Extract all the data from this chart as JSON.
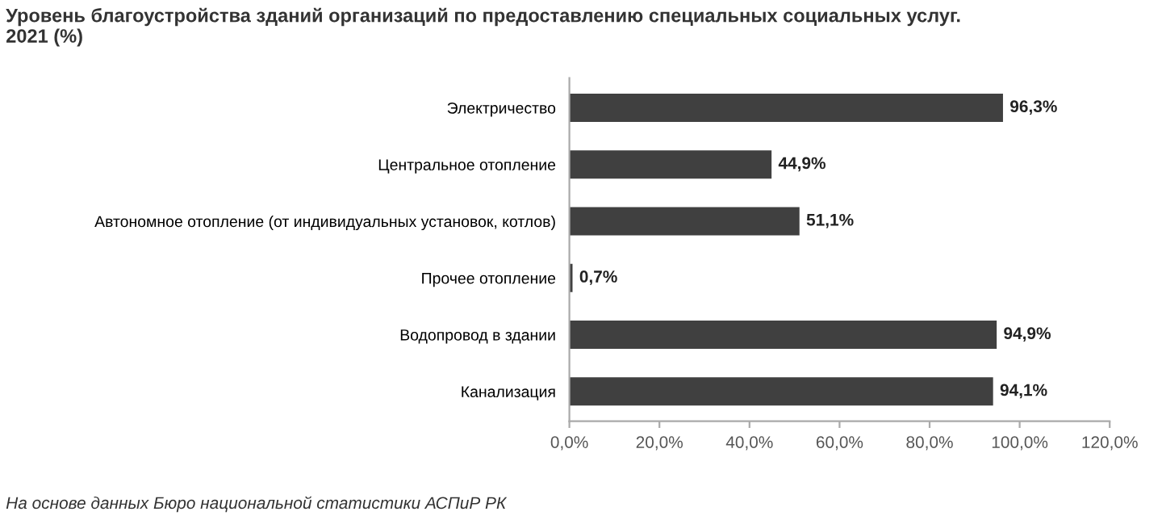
{
  "chart_data": {
    "type": "bar",
    "orientation": "horizontal",
    "title": "Уровень благоустройства зданий организаций по предоставлению специальных социальных услуг.\n2021 (%)",
    "categories": [
      "Электричество",
      "Центральное отопление",
      "Автономное отопление (от индивидуальных установок, котлов)",
      "Прочее отопление",
      "Водопровод в здании",
      "Канализация"
    ],
    "values": [
      96.3,
      44.9,
      51.1,
      0.7,
      94.9,
      94.1
    ],
    "value_labels": [
      "96,3%",
      "44,9%",
      "51,1%",
      "0,7%",
      "94,9%",
      "94,1%"
    ],
    "color": "#404040",
    "xlim": [
      0,
      120
    ],
    "xticks": [
      {
        "value": 0,
        "label": "0,0%"
      },
      {
        "value": 20,
        "label": "20,0%"
      },
      {
        "value": 40,
        "label": "40,0%"
      },
      {
        "value": 60,
        "label": "60,0%"
      },
      {
        "value": 80,
        "label": "80,0%"
      },
      {
        "value": 100,
        "label": "100,0%"
      },
      {
        "value": 120,
        "label": "120,0%"
      }
    ],
    "grid": false,
    "legend": false,
    "annotations": [
      "На основе данных Бюро национальной статистики АСПиР РК"
    ]
  }
}
